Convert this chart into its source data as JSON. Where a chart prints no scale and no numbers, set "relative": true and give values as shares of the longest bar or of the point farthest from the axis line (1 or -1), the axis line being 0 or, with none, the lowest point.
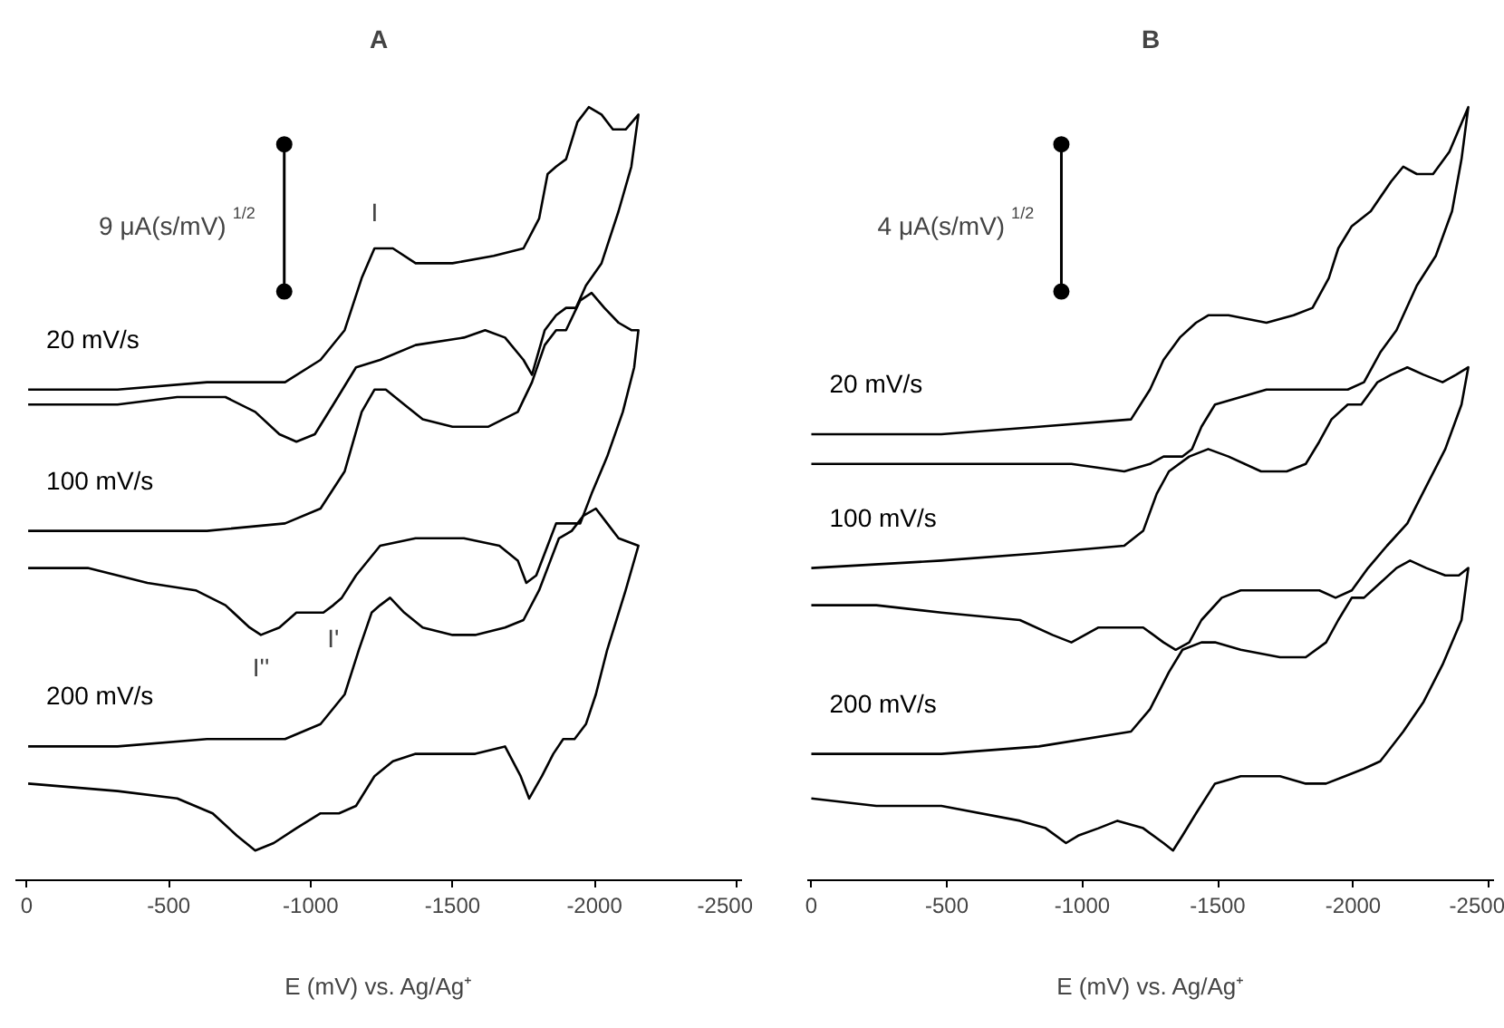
{
  "chart_data": [
    {
      "type": "line",
      "title": "A",
      "xlabel": "E (mV) vs. Ag/Ag⁺",
      "relative": true,
      "xlim": [
        40,
        -2520
      ],
      "xticks": [
        0,
        -500,
        -1000,
        -1500,
        -2000,
        -2500
      ],
      "annotations": [
        "9 μA(s/mV)$^{1/2}$",
        {
          "text": "I",
          "x": -1225,
          "y": 0.81
        },
        {
          "text": "I''",
          "x": -825,
          "y": 0.29
        },
        {
          "text": "I'",
          "x": -1080,
          "y": 0.33
        }
      ],
      "series": [
        {
          "name": "20 mV/s",
          "color": "#000000",
          "x": [
            -5,
            -320,
            -635,
            -910,
            -1035,
            -1120,
            -1180,
            -1225,
            -1290,
            -1370,
            -1500,
            -1645,
            -1750,
            -1805,
            -1835,
            -1865,
            -1900,
            -1940,
            -1980,
            -2025,
            -2065,
            -2110,
            -2155,
            -2130,
            -2085,
            -2025,
            -1970,
            -1935,
            -1900,
            -1865,
            -1825,
            -1780,
            -1750,
            -1685,
            -1615,
            -1540,
            -1370,
            -1245,
            -1160,
            -1080,
            -1015,
            -950,
            -890,
            -805,
            -700,
            -530,
            -320,
            -5
          ],
          "values": [
            0.62,
            0.62,
            0.63,
            0.63,
            0.66,
            0.7,
            0.77,
            0.81,
            0.81,
            0.79,
            0.79,
            0.8,
            0.81,
            0.85,
            0.91,
            0.92,
            0.93,
            0.98,
            1.0,
            0.99,
            0.97,
            0.97,
            0.99,
            0.92,
            0.86,
            0.79,
            0.76,
            0.73,
            0.73,
            0.72,
            0.7,
            0.64,
            0.66,
            0.69,
            0.7,
            0.69,
            0.68,
            0.66,
            0.65,
            0.6,
            0.56,
            0.55,
            0.56,
            0.59,
            0.61,
            0.61,
            0.6,
            0.6
          ]
        },
        {
          "name": "100 mV/s",
          "color": "#000000",
          "x": [
            -5,
            -320,
            -635,
            -910,
            -1035,
            -1120,
            -1180,
            -1225,
            -1265,
            -1330,
            -1395,
            -1500,
            -1625,
            -1730,
            -1780,
            -1825,
            -1865,
            -1900,
            -1950,
            -1990,
            -2035,
            -2085,
            -2130,
            -2155,
            -2140,
            -2100,
            -2045,
            -1990,
            -1950,
            -1900,
            -1865,
            -1835,
            -1795,
            -1760,
            -1730,
            -1665,
            -1540,
            -1370,
            -1245,
            -1160,
            -1110,
            -1080,
            -1045,
            -950,
            -890,
            -825,
            -785,
            -700,
            -595,
            -425,
            -215,
            -5
          ],
          "values": [
            0.43,
            0.43,
            0.43,
            0.44,
            0.46,
            0.51,
            0.59,
            0.62,
            0.62,
            0.6,
            0.58,
            0.57,
            0.57,
            0.59,
            0.63,
            0.68,
            0.7,
            0.7,
            0.74,
            0.75,
            0.73,
            0.71,
            0.7,
            0.7,
            0.65,
            0.59,
            0.53,
            0.48,
            0.44,
            0.44,
            0.44,
            0.41,
            0.37,
            0.36,
            0.39,
            0.41,
            0.42,
            0.42,
            0.41,
            0.37,
            0.34,
            0.33,
            0.32,
            0.32,
            0.3,
            0.29,
            0.3,
            0.33,
            0.35,
            0.36,
            0.38,
            0.38
          ]
        },
        {
          "name": "200 mV/s",
          "color": "#000000",
          "x": [
            -5,
            -320,
            -635,
            -910,
            -1035,
            -1120,
            -1170,
            -1215,
            -1245,
            -1280,
            -1330,
            -1395,
            -1500,
            -1580,
            -1685,
            -1750,
            -1805,
            -1845,
            -1875,
            -1920,
            -1960,
            -2005,
            -2045,
            -2085,
            -2155,
            -2110,
            -2045,
            -2005,
            -1970,
            -1930,
            -1890,
            -1855,
            -1815,
            -1770,
            -1740,
            -1685,
            -1580,
            -1370,
            -1290,
            -1225,
            -1160,
            -1100,
            -1035,
            -950,
            -870,
            -805,
            -740,
            -655,
            -530,
            -320,
            -5
          ],
          "values": [
            0.14,
            0.14,
            0.15,
            0.15,
            0.17,
            0.21,
            0.27,
            0.32,
            0.33,
            0.34,
            0.32,
            0.3,
            0.29,
            0.29,
            0.3,
            0.31,
            0.35,
            0.39,
            0.42,
            0.43,
            0.45,
            0.46,
            0.44,
            0.42,
            0.41,
            0.35,
            0.27,
            0.21,
            0.17,
            0.15,
            0.15,
            0.13,
            0.1,
            0.07,
            0.1,
            0.14,
            0.13,
            0.13,
            0.12,
            0.1,
            0.06,
            0.05,
            0.05,
            0.03,
            0.01,
            0,
            0.02,
            0.05,
            0.07,
            0.08,
            0.09
          ]
        }
      ]
    },
    {
      "type": "line",
      "title": "B",
      "xlabel": "E (mV) vs. Ag/Ag⁺",
      "relative": true,
      "xlim": [
        15,
        -2520
      ],
      "xticks": [
        0,
        -500,
        -1000,
        -1500,
        -2000,
        -2500
      ],
      "annotations": [
        "4 μA(s/mV)$^{1/2}$"
      ],
      "series": [
        {
          "name": "20 mV/s",
          "color": "#000000",
          "x": [
            0,
            -480,
            -840,
            -1180,
            -1250,
            -1300,
            -1360,
            -1420,
            -1465,
            -1540,
            -1680,
            -1780,
            -1850,
            -1910,
            -1945,
            -1995,
            -2065,
            -2140,
            -2185,
            -2235,
            -2295,
            -2355,
            -2425,
            -2400,
            -2365,
            -2305,
            -2235,
            -2160,
            -2100,
            -2040,
            -1980,
            -1920,
            -1875,
            -1780,
            -1680,
            -1585,
            -1490,
            -1440,
            -1405,
            -1370,
            -1335,
            -1300,
            -1250,
            -1155,
            -960,
            -720,
            -360,
            0
          ],
          "values": [
            0.56,
            0.56,
            0.57,
            0.58,
            0.62,
            0.66,
            0.69,
            0.71,
            0.72,
            0.72,
            0.71,
            0.72,
            0.73,
            0.77,
            0.81,
            0.84,
            0.86,
            0.9,
            0.92,
            0.91,
            0.91,
            0.94,
            1.0,
            0.93,
            0.86,
            0.8,
            0.76,
            0.7,
            0.67,
            0.63,
            0.62,
            0.62,
            0.62,
            0.62,
            0.62,
            0.61,
            0.6,
            0.57,
            0.54,
            0.53,
            0.53,
            0.53,
            0.52,
            0.51,
            0.52,
            0.52,
            0.52,
            0.52
          ]
        },
        {
          "name": "100 mV/s",
          "color": "#000000",
          "x": [
            0,
            -480,
            -840,
            -1155,
            -1225,
            -1275,
            -1320,
            -1395,
            -1465,
            -1540,
            -1660,
            -1755,
            -1825,
            -1875,
            -1920,
            -1980,
            -2030,
            -2090,
            -2140,
            -2200,
            -2260,
            -2330,
            -2380,
            -2425,
            -2400,
            -2340,
            -2270,
            -2200,
            -2125,
            -2055,
            -1995,
            -1935,
            -1875,
            -1780,
            -1680,
            -1585,
            -1515,
            -1440,
            -1395,
            -1345,
            -1300,
            -1225,
            -1130,
            -1060,
            -960,
            -890,
            -770,
            -480,
            -240,
            0
          ],
          "values": [
            0.38,
            0.39,
            0.4,
            0.41,
            0.43,
            0.48,
            0.51,
            0.53,
            0.54,
            0.53,
            0.51,
            0.51,
            0.52,
            0.55,
            0.58,
            0.6,
            0.6,
            0.63,
            0.64,
            0.65,
            0.64,
            0.63,
            0.64,
            0.65,
            0.6,
            0.54,
            0.49,
            0.44,
            0.41,
            0.38,
            0.35,
            0.34,
            0.35,
            0.35,
            0.35,
            0.35,
            0.34,
            0.31,
            0.28,
            0.27,
            0.28,
            0.3,
            0.3,
            0.3,
            0.28,
            0.29,
            0.31,
            0.32,
            0.33,
            0.33
          ]
        },
        {
          "name": "200 mV/s",
          "color": "#000000",
          "x": [
            0,
            -480,
            -840,
            -1180,
            -1250,
            -1320,
            -1370,
            -1440,
            -1490,
            -1585,
            -1730,
            -1825,
            -1900,
            -1945,
            -1995,
            -2040,
            -2100,
            -2160,
            -2210,
            -2270,
            -2340,
            -2390,
            -2425,
            -2400,
            -2330,
            -2260,
            -2185,
            -2100,
            -2040,
            -1970,
            -1900,
            -1825,
            -1730,
            -1585,
            -1490,
            -1420,
            -1370,
            -1335,
            -1300,
            -1225,
            -1130,
            -1060,
            -985,
            -940,
            -865,
            -770,
            -480,
            -240,
            0
          ],
          "values": [
            0.13,
            0.13,
            0.14,
            0.16,
            0.19,
            0.24,
            0.27,
            0.28,
            0.28,
            0.27,
            0.26,
            0.26,
            0.28,
            0.31,
            0.34,
            0.34,
            0.36,
            0.38,
            0.39,
            0.38,
            0.37,
            0.37,
            0.38,
            0.31,
            0.25,
            0.2,
            0.16,
            0.12,
            0.11,
            0.1,
            0.09,
            0.09,
            0.1,
            0.1,
            0.09,
            0.05,
            0.02,
            0,
            0.01,
            0.03,
            0.04,
            0.03,
            0.02,
            0.01,
            0.03,
            0.04,
            0.06,
            0.06,
            0.07
          ]
        }
      ]
    }
  ]
}
